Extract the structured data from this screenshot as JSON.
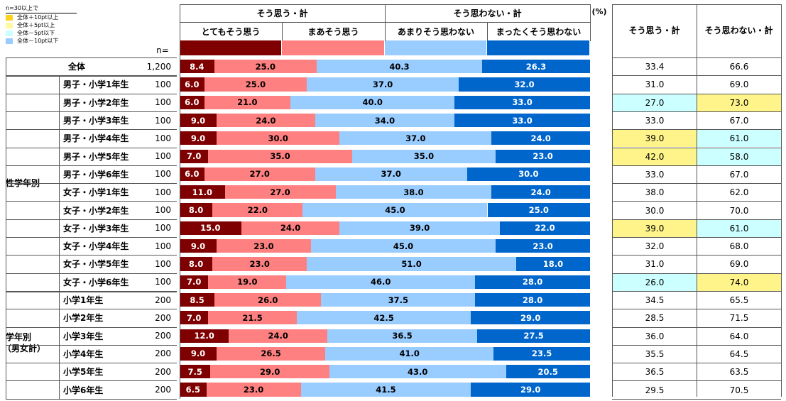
{
  "legend": {
    "title": "n=30以上で",
    "items": [
      {
        "label": "全体＋10pt以上",
        "color": "#ffd21e"
      },
      {
        "label": "全体＋5pt以上",
        "color": "#fff9a0"
      },
      {
        "label": "全体－5pt以下",
        "color": "#ccffff"
      },
      {
        "label": "全体－10pt以下",
        "color": "#99ccff"
      }
    ]
  },
  "header": {
    "agree_total": "そう思う・計",
    "disagree_total": "そう思わない・計",
    "percent_unit": "(%)",
    "n_label": "n=",
    "col_agree_sum": "そう思う・計",
    "col_disagree_sum": "そう思わない・計"
  },
  "groups": {
    "gender_grade": "性学年別",
    "grade_line1": "学年別",
    "grade_line2": "（男女計）"
  },
  "colors": {
    "strongly_agree": "#7f0000",
    "agree": "#ff8080",
    "disagree": "#99ccff",
    "strongly_disagree": "#0066cc",
    "highlight_yellow": "#fff48a",
    "highlight_cyan": "#ccffff"
  },
  "chart_data": {
    "type": "bar",
    "stacked": true,
    "orientation": "horizontal",
    "categories": [
      "全体",
      "男子・小学1年生",
      "男子・小学2年生",
      "男子・小学3年生",
      "男子・小学4年生",
      "男子・小学5年生",
      "男子・小学6年生",
      "女子・小学1年生",
      "女子・小学2年生",
      "女子・小学3年生",
      "女子・小学4年生",
      "女子・小学5年生",
      "女子・小学6年生",
      "小学1年生",
      "小学2年生",
      "小学3年生",
      "小学4年生",
      "小学5年生",
      "小学6年生"
    ],
    "n": [
      "1,200",
      "100",
      "100",
      "100",
      "100",
      "100",
      "100",
      "100",
      "100",
      "100",
      "100",
      "100",
      "100",
      "200",
      "200",
      "200",
      "200",
      "200",
      "200"
    ],
    "series": [
      {
        "name": "とてもそう思う",
        "values": [
          8.4,
          6.0,
          6.0,
          9.0,
          9.0,
          7.0,
          6.0,
          11.0,
          8.0,
          15.0,
          9.0,
          8.0,
          7.0,
          8.5,
          7.0,
          12.0,
          9.0,
          7.5,
          6.5
        ]
      },
      {
        "name": "まあそう思う",
        "values": [
          25.0,
          25.0,
          21.0,
          24.0,
          30.0,
          35.0,
          27.0,
          27.0,
          22.0,
          24.0,
          23.0,
          23.0,
          19.0,
          26.0,
          21.5,
          24.0,
          26.5,
          29.0,
          23.0
        ]
      },
      {
        "name": "あまりそう思わない",
        "values": [
          40.3,
          37.0,
          40.0,
          34.0,
          37.0,
          35.0,
          37.0,
          38.0,
          45.0,
          39.0,
          45.0,
          51.0,
          46.0,
          37.5,
          42.5,
          36.5,
          41.0,
          43.0,
          41.5
        ]
      },
      {
        "name": "まったくそう思わない",
        "values": [
          26.3,
          32.0,
          33.0,
          33.0,
          24.0,
          23.0,
          30.0,
          24.0,
          25.0,
          22.0,
          23.0,
          18.0,
          28.0,
          28.0,
          29.0,
          27.5,
          23.5,
          20.5,
          29.0
        ]
      }
    ],
    "totals": {
      "agree": [
        "33.4",
        "31.0",
        "27.0",
        "33.0",
        "39.0",
        "42.0",
        "33.0",
        "38.0",
        "30.0",
        "39.0",
        "32.0",
        "31.0",
        "26.0",
        "34.5",
        "28.5",
        "36.0",
        "35.5",
        "36.5",
        "29.5"
      ],
      "disagree": [
        "66.6",
        "69.0",
        "73.0",
        "67.0",
        "61.0",
        "58.0",
        "67.0",
        "62.0",
        "70.0",
        "61.0",
        "68.0",
        "69.0",
        "74.0",
        "65.5",
        "71.5",
        "64.0",
        "64.5",
        "63.5",
        "70.5"
      ]
    },
    "highlights": {
      "agree": [
        "",
        "",
        "cyan",
        "",
        "yellow",
        "yellow",
        "",
        "",
        "",
        "yellow",
        "",
        "",
        "cyan",
        "",
        "",
        "",
        "",
        "",
        ""
      ],
      "disagree": [
        "",
        "",
        "yellow",
        "",
        "cyan",
        "cyan",
        "",
        "",
        "",
        "cyan",
        "",
        "",
        "yellow",
        "",
        "",
        "",
        "",
        "",
        ""
      ]
    },
    "xlim": [
      0,
      100
    ]
  }
}
